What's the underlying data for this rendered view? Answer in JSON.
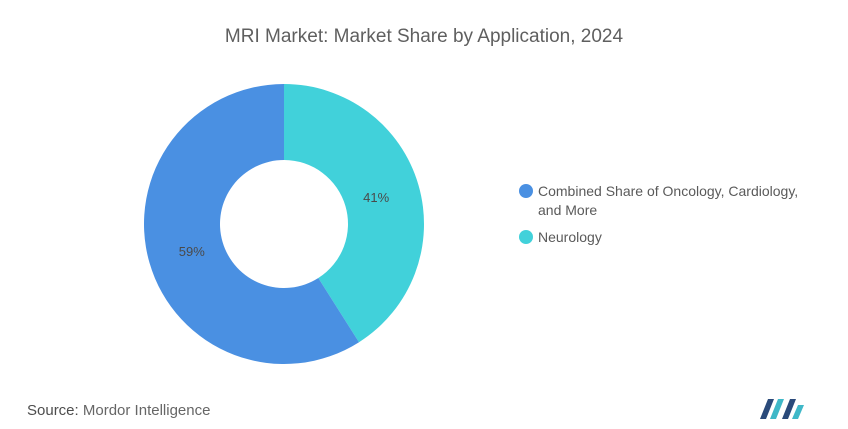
{
  "chart_data": {
    "type": "pie",
    "variant": "donut",
    "title": "MRI Market: Market Share by Application, 2024",
    "slices": [
      {
        "label": "Neurology",
        "value": 41,
        "value_label": "41%",
        "color": "#41d1da"
      },
      {
        "label": "Combined Share of Oncology, Cardiology, and More",
        "value": 59,
        "value_label": "59%",
        "color": "#4a90e2"
      }
    ],
    "legend": {
      "placement": "right",
      "entries": [
        {
          "label_line1": "Combined Share of Oncology, Cardiology,",
          "label_line2": "and More",
          "color": "#4a90e2"
        },
        {
          "label_line1": "Neurology",
          "label_line2": "",
          "color": "#41d1da"
        }
      ]
    }
  },
  "footer": {
    "source_label": "Source:",
    "source_value": "Mordor Intelligence"
  },
  "logo": {
    "icon": "mordor-intelligence-logo",
    "colors": [
      "#2a4a7a",
      "#3fb8c8"
    ]
  }
}
